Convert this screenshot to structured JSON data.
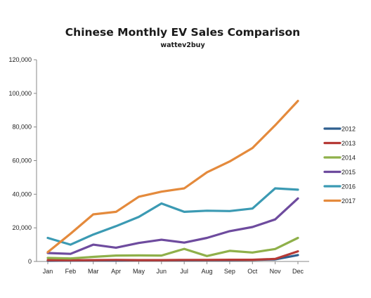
{
  "chart_data": {
    "type": "line",
    "title": "Chinese Monthly EV Sales Comparison",
    "subtitle": "wattev2buy",
    "xlabel": "",
    "ylabel": "",
    "categories": [
      "Jan",
      "Feb",
      "Mar",
      "Apr",
      "May",
      "Jun",
      "Jul",
      "Aug",
      "Sep",
      "Oct",
      "Nov",
      "Dec"
    ],
    "ylim": [
      0,
      120000
    ],
    "yticks": [
      0,
      20000,
      40000,
      60000,
      80000,
      100000,
      120000
    ],
    "ytick_labels": [
      "0",
      "20,000",
      "40,000",
      "60,000",
      "80,000",
      "100,000",
      "120,000"
    ],
    "grid": false,
    "legend_position": "right",
    "series": [
      {
        "name": "2012",
        "color": "#2f5f8f",
        "values": [
          400,
          500,
          600,
          600,
          700,
          700,
          700,
          800,
          800,
          900,
          1200,
          3800
        ]
      },
      {
        "name": "2013",
        "color": "#b63a36",
        "values": [
          800,
          700,
          800,
          900,
          800,
          800,
          900,
          900,
          1000,
          1000,
          1500,
          6000
        ]
      },
      {
        "name": "2014",
        "color": "#8fb04a",
        "values": [
          2100,
          1800,
          2700,
          3500,
          3600,
          3500,
          7500,
          3200,
          6300,
          5300,
          7400,
          14000
        ]
      },
      {
        "name": "2015",
        "color": "#6e4b9e",
        "values": [
          5000,
          4500,
          10000,
          8200,
          11000,
          12900,
          11200,
          14000,
          18000,
          20500,
          25000,
          37500
        ]
      },
      {
        "name": "2016",
        "color": "#3b9ab3",
        "values": [
          14000,
          10000,
          16000,
          21000,
          26500,
          34500,
          29500,
          30200,
          30000,
          31500,
          43500,
          42700
        ]
      },
      {
        "name": "2017",
        "color": "#e48a3c",
        "values": [
          5500,
          16500,
          28000,
          29500,
          38500,
          41500,
          43500,
          53000,
          59500,
          67500,
          81000,
          95500
        ]
      }
    ]
  }
}
